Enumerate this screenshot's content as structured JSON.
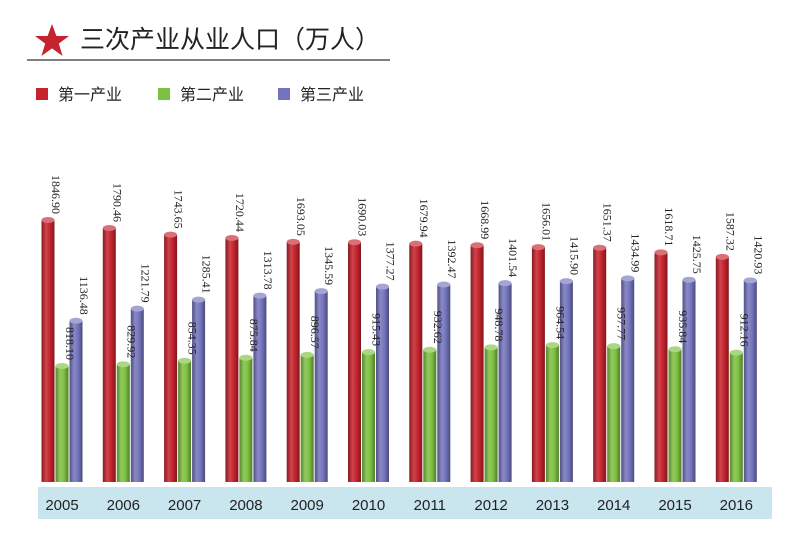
{
  "chart_data": {
    "type": "bar",
    "title": "三次产业从业人口（万人）",
    "categories": [
      "2005",
      "2006",
      "2007",
      "2008",
      "2009",
      "2010",
      "2011",
      "2012",
      "2013",
      "2014",
      "2015",
      "2016"
    ],
    "series": [
      {
        "name": "第一产业",
        "color": "#c5232d",
        "values": [
          1846.9,
          1790.46,
          1743.65,
          1720.44,
          1693.05,
          1690.03,
          1679.94,
          1668.99,
          1656.01,
          1651.37,
          1618.71,
          1587.32
        ],
        "labels": [
          "1846.90",
          "1790.46",
          "1743.65",
          "1720.44",
          "1693.05",
          "1690.03",
          "1679.94",
          "1668.99",
          "1656.01",
          "1651.37",
          "1618.71",
          "1587.32"
        ]
      },
      {
        "name": "第二产业",
        "color": "#7dc142",
        "values": [
          818.1,
          829.92,
          854.35,
          875.84,
          896.57,
          915.43,
          932.62,
          948.78,
          964.54,
          957.77,
          935.84,
          912.16
        ],
        "labels": [
          "818.10",
          "829.92",
          "854.35",
          "875.84",
          "896.57",
          "915.43",
          "932.62",
          "948.78",
          "964.54",
          "957.77",
          "935.84",
          "912.16"
        ]
      },
      {
        "name": "第三产业",
        "color": "#7474bd",
        "values": [
          1136.48,
          1221.79,
          1285.41,
          1313.78,
          1345.59,
          1377.27,
          1392.47,
          1401.54,
          1415.9,
          1434.99,
          1425.75,
          1420.93
        ],
        "labels": [
          "1136.48",
          "1221.79",
          "1285.41",
          "1313.78",
          "1345.59",
          "1377.27",
          "1392.47",
          "1401.54",
          "1415.90",
          "1434.99",
          "1425.75",
          "1420.93"
        ]
      }
    ],
    "legend_position": "top-left",
    "grid": false,
    "ylim": [
      0,
      1846.9
    ]
  },
  "colors": {
    "title_star": "#c5232d",
    "axis_band": "#c9e6ef",
    "title_rule": "#333333"
  }
}
